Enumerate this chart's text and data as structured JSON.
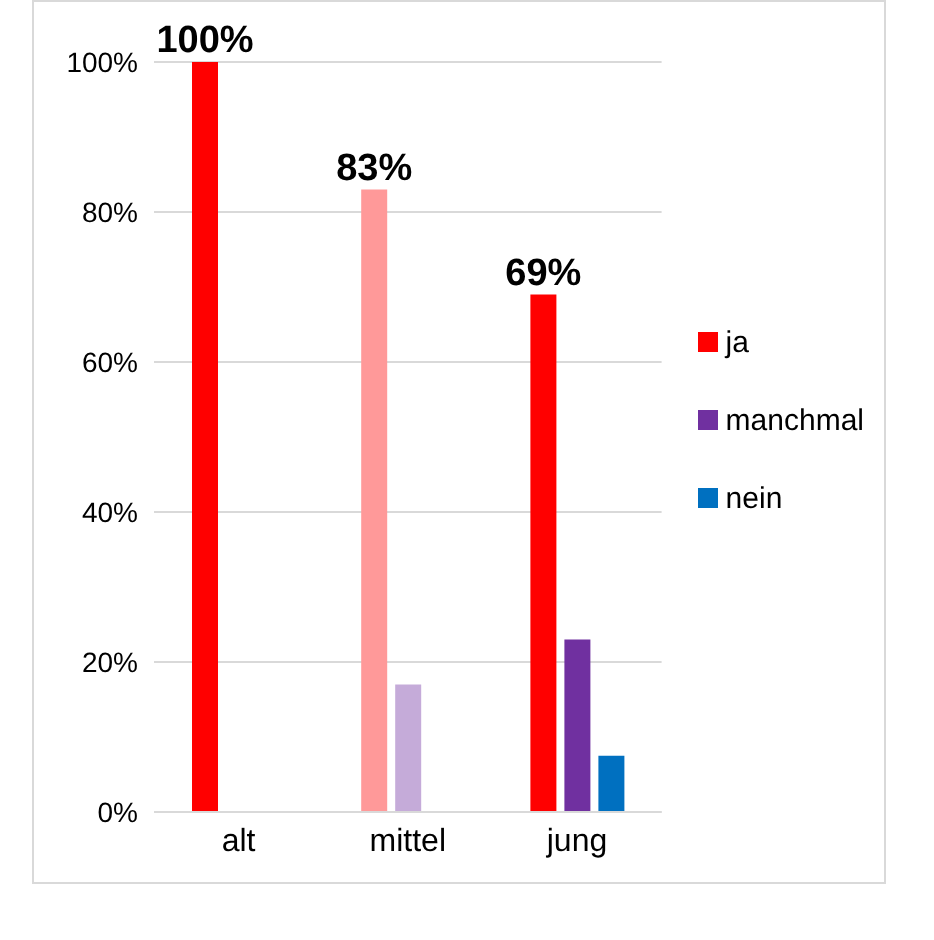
{
  "chart_data": {
    "type": "bar",
    "categories": [
      "alt",
      "mittel",
      "jung"
    ],
    "series": [
      {
        "name": "ja",
        "color": "#ff0000",
        "colors": [
          "#ff0000",
          "#ff9999",
          "#ff0000"
        ],
        "values": [
          100,
          83,
          69
        ],
        "value_labels": [
          "100%",
          "83%",
          "69%"
        ]
      },
      {
        "name": "manchmal",
        "color": "#7030a0",
        "colors": [
          "#7030a0",
          "#c5abd9",
          "#7030a0"
        ],
        "values": [
          0,
          17,
          23
        ]
      },
      {
        "name": "nein",
        "color": "#0070c0",
        "colors": [
          "#0070c0",
          "#0070c0",
          "#0070c0"
        ],
        "values": [
          0,
          0,
          7.5
        ]
      }
    ],
    "ylim": [
      0,
      100
    ],
    "yticks": [
      {
        "value": 0,
        "label": "0%"
      },
      {
        "value": 20,
        "label": "20%"
      },
      {
        "value": 40,
        "label": "40%"
      },
      {
        "value": 60,
        "label": "60%"
      },
      {
        "value": 80,
        "label": "80%"
      },
      {
        "value": 100,
        "label": "100%"
      }
    ],
    "grid": "y",
    "legend": "right"
  }
}
